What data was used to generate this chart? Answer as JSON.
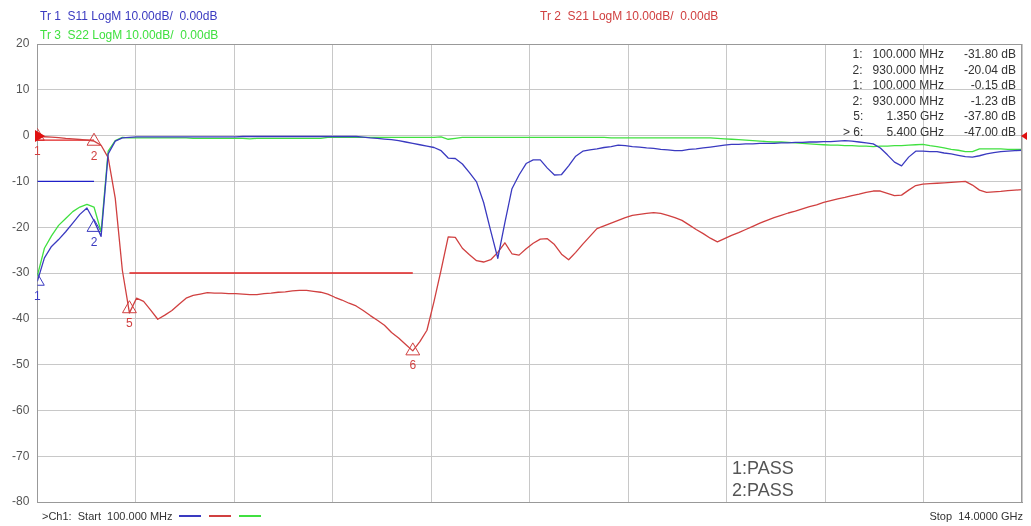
{
  "chart_data": {
    "type": "line",
    "annotations": [
      "1:   100.000 MHz      -31.80 dB",
      "2:   930.000 MHz      -20.04 dB",
      "1:   100.000 MHz        -0.15 dB",
      "2:   930.000 MHz        -1.23 dB",
      "5:       1.350 GHz      -37.80 dB",
      "> 6:       5.400 GHz      -47.00 dB",
      "1:PASS",
      "2:PASS",
      ">Ch1:  Start  100.000 MHz",
      "Stop  14.0000 GHz",
      {
        "text": "1",
        "y": -31.8
      },
      {
        "text": "2",
        "y": -20.04
      },
      {
        "text": "1",
        "y": -0.15
      },
      {
        "text": "2",
        "y": -1.23
      },
      {
        "text": "5",
        "y": -37.8
      },
      {
        "text": "6",
        "y": -47
      }
    ],
    "categories": [
      null,
      null,
      null,
      null,
      null,
      null,
      null,
      null,
      null,
      null,
      null,
      null,
      null,
      null,
      null,
      null,
      null,
      null,
      null,
      null,
      null,
      null,
      null,
      null,
      null,
      null,
      null,
      null,
      null,
      null,
      null,
      null,
      null,
      null,
      null,
      null,
      null,
      null,
      null,
      null,
      null,
      null,
      null,
      null,
      null,
      null,
      null,
      null,
      null,
      null,
      null,
      null,
      null,
      null,
      null,
      null,
      null,
      null,
      null,
      null,
      null,
      null,
      null,
      null,
      null,
      null,
      null,
      null,
      null,
      null,
      null,
      null,
      null,
      null,
      null,
      null,
      null,
      null,
      null,
      null,
      null,
      null,
      null,
      null,
      null,
      null,
      null,
      null,
      null,
      null,
      null,
      null,
      null,
      null,
      null,
      null,
      null,
      null,
      null,
      null,
      null,
      null,
      null,
      null,
      null,
      null,
      null,
      null,
      null,
      null,
      null,
      null,
      null,
      null,
      null,
      null,
      null,
      null,
      null,
      null,
      null,
      null,
      null,
      null,
      null,
      null,
      null,
      null,
      null,
      null,
      null,
      null,
      null,
      null,
      null,
      null,
      null,
      null,
      null,
      null
    ],
    "ylim": [
      -80,
      20
    ],
    "yticks": [
      -80,
      -70,
      -60,
      -50,
      -40,
      -30,
      -20,
      -10,
      0,
      10,
      20
    ],
    "grid": true,
    "tick_labels": "y",
    "marker": "none",
    "line_style": "solid",
    "series": [
      {
        "name": "Tr 1  S11 LogM 10.00dB/  0.00dB",
        "color": "#3a3ac0",
        "values": [
          -31.8,
          -26.7,
          -24.2,
          -22.7,
          -21,
          -19.1,
          -17.2,
          -15.8,
          -18.6,
          -22,
          -4,
          -1.2,
          -0.5,
          -0.4,
          -0.3,
          -0.3,
          -0.3,
          -0.3,
          -0.3,
          -0.3,
          -0.3,
          -0.3,
          -0.3,
          -0.3,
          -0.3,
          -0.3,
          -0.3,
          -0.3,
          -0.3,
          -0.2,
          -0.2,
          -0.2,
          -0.2,
          -0.2,
          -0.2,
          -0.2,
          -0.2,
          -0.2,
          -0.2,
          -0.2,
          -0.2,
          -0.2,
          -0.2,
          -0.2,
          -0.2,
          -0.2,
          -0.35,
          -0.5,
          -0.6,
          -0.75,
          -0.9,
          -1.1,
          -1.4,
          -1.7,
          -2,
          -2.3,
          -2.6,
          -3.3,
          -4.9,
          -5,
          -6.2,
          -8.1,
          -10.1,
          -14.6,
          -20.8,
          -26.8,
          -19,
          -11.6,
          -8.6,
          -6.1,
          -5.3,
          -5.3,
          -7.1,
          -8.6,
          -8.5,
          -6.6,
          -4.5,
          -3.4,
          -3.1,
          -2.9,
          -2.6,
          -2.4,
          -2.1,
          -2.2,
          -2.4,
          -2.5,
          -2.7,
          -2.8,
          -3,
          -3.1,
          -3.3,
          -3.3,
          -3,
          -2.9,
          -2.7,
          -2.5,
          -2.3,
          -2.1,
          -1.9,
          -1.9,
          -1.8,
          -1.8,
          -1.7,
          -1.7,
          -1.7,
          -1.6,
          -1.6,
          -1.5,
          -1.5,
          -1.4,
          -1.4,
          -1.3,
          -1.3,
          -1.2,
          -1.1,
          -1.2,
          -1.4,
          -1.6,
          -1.8,
          -2.7,
          -4.2,
          -5.8,
          -6.6,
          -4.7,
          -3.4,
          -3.4,
          -3.5,
          -3.5,
          -3.8,
          -4,
          -4.3,
          -4.6,
          -4.7,
          -4.4,
          -4,
          -3.7,
          -3.5,
          -3.4,
          -3.3,
          -3.2
        ]
      },
      {
        "name": "Tr 2  S21 LogM 10.00dB/  0.00dB",
        "color": "#d04040",
        "values": [
          -0.15,
          -0.25,
          -0.35,
          -0.45,
          -0.6,
          -0.7,
          -0.85,
          -1,
          -1.2,
          -2.1,
          -4.8,
          -13.7,
          -29.4,
          -38.7,
          -35.5,
          -36.2,
          -38.1,
          -40.1,
          -39.2,
          -38.2,
          -36.8,
          -35.5,
          -34.9,
          -34.6,
          -34.3,
          -34.4,
          -34.4,
          -34.5,
          -34.5,
          -34.6,
          -34.7,
          -34.7,
          -34.5,
          -34.4,
          -34.2,
          -34.1,
          -33.9,
          -33.8,
          -33.8,
          -34,
          -34.2,
          -34.6,
          -35.3,
          -35.9,
          -36.6,
          -37.2,
          -38.2,
          -39.3,
          -40.3,
          -41.4,
          -43,
          -44.2,
          -45.6,
          -47,
          -45,
          -42.5,
          -36.2,
          -29.3,
          -22.1,
          -22.2,
          -24.6,
          -26,
          -27.3,
          -27.6,
          -27.1,
          -25.5,
          -23.4,
          -25.8,
          -26.1,
          -24.7,
          -23.5,
          -22.6,
          -22.5,
          -23.8,
          -25.9,
          -27.1,
          -25.5,
          -23.7,
          -22,
          -20.3,
          -19.7,
          -19.1,
          -18.5,
          -17.9,
          -17.4,
          -17.2,
          -17,
          -16.8,
          -17,
          -17.4,
          -17.9,
          -18.5,
          -19.5,
          -20.5,
          -21.4,
          -22.4,
          -23.2,
          -22.5,
          -21.8,
          -21.2,
          -20.5,
          -19.8,
          -19.1,
          -18.5,
          -17.9,
          -17.4,
          -16.9,
          -16.5,
          -16,
          -15.5,
          -15.1,
          -14.6,
          -14.2,
          -13.8,
          -13.5,
          -13.1,
          -12.8,
          -12.4,
          -12.1,
          -12.1,
          -12.6,
          -13.1,
          -13,
          -11.9,
          -10.9,
          -10.6,
          -10.5,
          -10.4,
          -10.3,
          -10.2,
          -10.1,
          -10,
          -10.8,
          -11.9,
          -12.4,
          -12.3,
          -12.2,
          -12,
          -11.9,
          -11.8
        ]
      },
      {
        "name": "Tr 3  S22 LogM 10.00dB/  0.00dB",
        "color": "#40e040",
        "values": [
          -30.6,
          -24.6,
          -21.9,
          -19.6,
          -18.1,
          -16.6,
          -15.6,
          -15,
          -15.6,
          -21,
          -3.4,
          -1.1,
          -0.4,
          -0.5,
          -0.5,
          -0.5,
          -0.5,
          -0.5,
          -0.5,
          -0.5,
          -0.5,
          -0.5,
          -0.6,
          -0.6,
          -0.6,
          -0.6,
          -0.6,
          -0.6,
          -0.6,
          -0.6,
          -0.7,
          -0.6,
          -0.6,
          -0.6,
          -0.6,
          -0.6,
          -0.6,
          -0.6,
          -0.6,
          -0.6,
          -0.6,
          -0.4,
          -0.4,
          -0.4,
          -0.4,
          -0.4,
          -0.4,
          -0.4,
          -0.4,
          -0.4,
          -0.4,
          -0.4,
          -0.4,
          -0.4,
          -0.4,
          -0.4,
          -0.4,
          -0.3,
          -0.8,
          -0.6,
          -0.4,
          -0.4,
          -0.4,
          -0.4,
          -0.4,
          -0.4,
          -0.4,
          -0.4,
          -0.4,
          -0.4,
          -0.4,
          -0.4,
          -0.4,
          -0.4,
          -0.4,
          -0.4,
          -0.4,
          -0.4,
          -0.4,
          -0.4,
          -0.4,
          -0.5,
          -0.5,
          -0.5,
          -0.5,
          -0.5,
          -0.5,
          -0.5,
          -0.5,
          -0.5,
          -0.5,
          -0.5,
          -0.5,
          -0.5,
          -0.5,
          -0.5,
          -0.6,
          -0.7,
          -0.8,
          -0.9,
          -1,
          -1.1,
          -1.2,
          -1.3,
          -1.4,
          -1.4,
          -1.5,
          -1.6,
          -1.7,
          -1.8,
          -1.9,
          -2,
          -2.1,
          -2.1,
          -2.2,
          -2.2,
          -2.3,
          -2.3,
          -2.4,
          -2.3,
          -2.3,
          -2.2,
          -2.2,
          -2.1,
          -2,
          -1.9,
          -2.2,
          -2.4,
          -2.7,
          -3,
          -3.2,
          -3.5,
          -3.5,
          -2.9,
          -2.9,
          -2.9,
          -2.9,
          -3,
          -3,
          -3
        ]
      },
      {
        "color": "#2020c8",
        "values": [
          -10,
          -10,
          -10,
          -10,
          -10,
          -10,
          -10,
          -10,
          -10,
          null,
          null,
          null,
          null,
          null,
          null,
          null,
          null,
          null,
          null,
          null,
          null,
          null,
          null,
          null,
          null,
          null,
          null,
          null,
          null,
          null,
          null,
          null,
          null,
          null,
          null,
          null,
          null,
          null,
          null,
          null,
          null,
          null,
          null,
          null,
          null,
          null,
          null,
          null,
          null,
          null,
          null,
          null,
          null,
          null,
          null,
          null,
          null,
          null,
          null,
          null,
          null,
          null,
          null,
          null,
          null,
          null,
          null,
          null,
          null,
          null,
          null,
          null,
          null,
          null,
          null,
          null,
          null,
          null,
          null,
          null,
          null,
          null,
          null,
          null,
          null,
          null,
          null,
          null,
          null,
          null,
          null,
          null,
          null,
          null,
          null,
          null,
          null,
          null,
          null,
          null,
          null,
          null,
          null,
          null,
          null,
          null,
          null,
          null,
          null,
          null,
          null,
          null,
          null,
          null,
          null,
          null,
          null,
          null,
          null,
          null,
          null,
          null,
          null,
          null,
          null,
          null,
          null,
          null,
          null,
          null,
          null,
          null,
          null,
          null,
          null,
          null,
          null,
          null,
          null,
          null
        ]
      },
      {
        "color": "#e02020",
        "values": [
          -1,
          -1,
          -1,
          -1,
          -1,
          -1,
          -1,
          -1,
          -1,
          null,
          null,
          null,
          null,
          null,
          null,
          null,
          null,
          null,
          null,
          null,
          null,
          null,
          null,
          null,
          null,
          null,
          null,
          null,
          null,
          null,
          null,
          null,
          null,
          null,
          null,
          null,
          null,
          null,
          null,
          null,
          null,
          null,
          null,
          null,
          null,
          null,
          null,
          null,
          null,
          null,
          null,
          null,
          null,
          null,
          null,
          null,
          null,
          null,
          null,
          null,
          null,
          null,
          null,
          null,
          null,
          null,
          null,
          null,
          null,
          null,
          null,
          null,
          null,
          null,
          null,
          null,
          null,
          null,
          null,
          null,
          null,
          null,
          null,
          null,
          null,
          null,
          null,
          null,
          null,
          null,
          null,
          null,
          null,
          null,
          null,
          null,
          null,
          null,
          null,
          null,
          null,
          null,
          null,
          null,
          null,
          null,
          null,
          null,
          null,
          null,
          null,
          null,
          null,
          null,
          null,
          null,
          null,
          null,
          null,
          null,
          null,
          null,
          null,
          null,
          null,
          null,
          null,
          null,
          null,
          null,
          null,
          null,
          null,
          null,
          null,
          null,
          null,
          null,
          null,
          null
        ]
      },
      {
        "color": "#e02020",
        "values": [
          null,
          null,
          null,
          null,
          null,
          null,
          null,
          null,
          null,
          null,
          null,
          null,
          null,
          -30,
          -30,
          -30,
          -30,
          -30,
          -30,
          -30,
          -30,
          -30,
          -30,
          -30,
          -30,
          -30,
          -30,
          -30,
          -30,
          -30,
          -30,
          -30,
          -30,
          -30,
          -30,
          -30,
          -30,
          -30,
          -30,
          -30,
          -30,
          -30,
          -30,
          -30,
          -30,
          -30,
          -30,
          -30,
          -30,
          -30,
          -30,
          -30,
          -30,
          -30,
          null,
          null,
          null,
          null,
          null,
          null,
          null,
          null,
          null,
          null,
          null,
          null,
          null,
          null,
          null,
          null,
          null,
          null,
          null,
          null,
          null,
          null,
          null,
          null,
          null,
          null,
          null,
          null,
          null,
          null,
          null,
          null,
          null,
          null,
          null,
          null,
          null,
          null,
          null,
          null,
          null,
          null,
          null,
          null,
          null,
          null,
          null,
          null,
          null,
          null,
          null,
          null,
          null,
          null,
          null,
          null,
          null,
          null,
          null,
          null,
          null,
          null,
          null,
          null,
          null,
          null,
          null,
          null,
          null,
          null,
          null,
          null,
          null,
          null,
          null,
          null,
          null,
          null,
          null,
          null,
          null,
          null,
          null,
          null,
          null,
          null
        ]
      },
      {
        "type": "scatter",
        "marker": "triangle",
        "color": "#3a3ac0",
        "values": [
          -31.8,
          null,
          null,
          null,
          null,
          null,
          null,
          null,
          -20.04,
          null,
          null,
          null,
          null,
          null,
          null,
          null,
          null,
          null,
          null,
          null,
          null,
          null,
          null,
          null,
          null,
          null,
          null,
          null,
          null,
          null,
          null,
          null,
          null,
          null,
          null,
          null,
          null,
          null,
          null,
          null,
          null,
          null,
          null,
          null,
          null,
          null,
          null,
          null,
          null,
          null,
          null,
          null,
          null,
          null,
          null,
          null,
          null,
          null,
          null,
          null,
          null,
          null,
          null,
          null,
          null,
          null,
          null,
          null,
          null,
          null,
          null,
          null,
          null,
          null,
          null,
          null,
          null,
          null,
          null,
          null,
          null,
          null,
          null,
          null,
          null,
          null,
          null,
          null,
          null,
          null,
          null,
          null,
          null,
          null,
          null,
          null,
          null,
          null,
          null,
          null,
          null,
          null,
          null,
          null,
          null,
          null,
          null,
          null,
          null,
          null,
          null,
          null,
          null,
          null,
          null,
          null,
          null,
          null,
          null,
          null,
          null,
          null,
          null,
          null,
          null,
          null,
          null,
          null,
          null,
          null,
          null,
          null,
          null,
          null,
          null,
          null,
          null,
          null,
          null,
          null
        ]
      },
      {
        "type": "scatter",
        "marker": "triangle",
        "color": "#d04040",
        "values": [
          -0.15,
          null,
          null,
          null,
          null,
          null,
          null,
          null,
          -1.23,
          null,
          null,
          null,
          null,
          -37.8,
          null,
          null,
          null,
          null,
          null,
          null,
          null,
          null,
          null,
          null,
          null,
          null,
          null,
          null,
          null,
          null,
          null,
          null,
          null,
          null,
          null,
          null,
          null,
          null,
          null,
          null,
          null,
          null,
          null,
          null,
          null,
          null,
          null,
          null,
          null,
          null,
          null,
          null,
          null,
          -47,
          null,
          null,
          null,
          null,
          null,
          null,
          null,
          null,
          null,
          null,
          null,
          null,
          null,
          null,
          null,
          null,
          null,
          null,
          null,
          null,
          null,
          null,
          null,
          null,
          null,
          null,
          null,
          null,
          null,
          null,
          null,
          null,
          null,
          null,
          null,
          null,
          null,
          null,
          null,
          null,
          null,
          null,
          null,
          null,
          null,
          null,
          null,
          null,
          null,
          null,
          null,
          null,
          null,
          null,
          null,
          null,
          null,
          null,
          null,
          null,
          null,
          null,
          null,
          null,
          null,
          null,
          null,
          null,
          null,
          null,
          null,
          null,
          null,
          null,
          null,
          null,
          null,
          null,
          null,
          null,
          null,
          null,
          null,
          null,
          null,
          null
        ]
      }
    ]
  }
}
